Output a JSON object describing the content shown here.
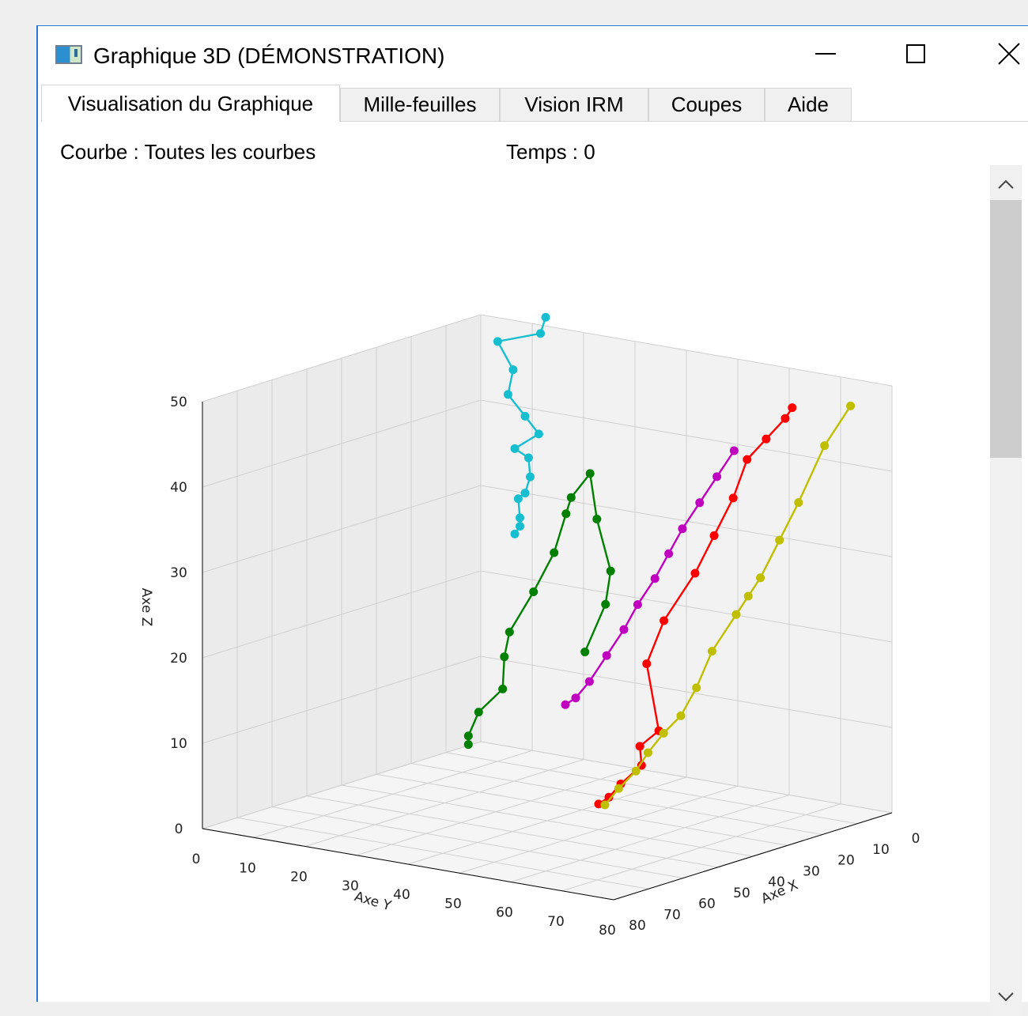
{
  "window": {
    "title": "Graphique 3D (DÉMONSTRATION)",
    "icon": "application-window-icon"
  },
  "tabs": [
    {
      "label": "Visualisation du Graphique",
      "active": true
    },
    {
      "label": "Mille-feuilles",
      "active": false
    },
    {
      "label": "Vision IRM",
      "active": false
    },
    {
      "label": "Coupes",
      "active": false
    },
    {
      "label": "Aide",
      "active": false
    }
  ],
  "info": {
    "curve": "Courbe : Toutes les courbes",
    "time": "Temps : 0"
  },
  "scrollbars": [
    {
      "name": "vertical-scrollbar-inner",
      "position": 0.0
    },
    {
      "name": "vertical-scrollbar-outer",
      "position": 0.0
    }
  ],
  "chart_data": {
    "type": "scatter3d",
    "xlabel": "Axe X",
    "ylabel": "Axe Y",
    "zlabel": "Axe Z",
    "xlim": [
      0,
      80
    ],
    "ylim": [
      0,
      80
    ],
    "zlim": [
      0,
      50
    ],
    "x_ticks": [
      0,
      10,
      20,
      30,
      40,
      50,
      60,
      70,
      80
    ],
    "y_ticks": [
      0,
      10,
      20,
      30,
      40,
      50,
      60,
      70,
      80
    ],
    "z_ticks": [
      0,
      10,
      20,
      30,
      40,
      50
    ],
    "grid": true,
    "series_colors": [
      "#17becf",
      "#008000",
      "#ff0000",
      "#bfbf00",
      "#bf00bf"
    ],
    "series": [
      {
        "color": "#17becf",
        "points": [
          [
            5,
            10,
            26
          ],
          [
            5,
            11,
            27
          ],
          [
            5,
            11,
            28
          ],
          [
            4,
            10,
            30
          ],
          [
            5,
            12,
            31
          ],
          [
            5,
            13,
            33
          ],
          [
            4,
            12,
            35
          ],
          [
            5,
            10,
            36
          ],
          [
            4,
            14,
            38
          ],
          [
            5,
            12,
            40
          ],
          [
            4,
            8,
            42
          ],
          [
            4,
            9,
            45
          ],
          [
            4,
            6,
            48
          ],
          [
            5,
            15,
            50
          ],
          [
            5,
            16,
            52
          ]
        ]
      },
      {
        "color": "#008000",
        "points": [
          [
            8,
            3,
            1
          ],
          [
            8,
            3,
            2
          ],
          [
            8,
            5,
            5
          ],
          [
            7,
            9,
            8
          ],
          [
            8,
            10,
            12
          ],
          [
            8,
            11,
            15
          ],
          [
            7,
            15,
            20
          ],
          [
            7,
            19,
            25
          ],
          [
            8,
            22,
            30
          ],
          [
            8,
            23,
            32
          ],
          [
            7,
            26,
            35
          ],
          [
            8,
            28,
            30
          ],
          [
            7,
            30,
            24
          ],
          [
            7,
            29,
            20
          ],
          [
            7,
            25,
            14
          ]
        ]
      },
      {
        "color": "#ff0000",
        "points": [
          [
            40,
            50,
            3
          ],
          [
            40,
            52,
            4
          ],
          [
            41,
            55,
            6
          ],
          [
            38,
            57,
            8
          ],
          [
            37,
            56,
            10
          ],
          [
            36,
            59,
            12
          ],
          [
            38,
            58,
            20
          ],
          [
            36,
            60,
            25
          ],
          [
            30,
            62,
            30
          ],
          [
            26,
            63,
            34
          ],
          [
            22,
            64,
            38
          ],
          [
            18,
            64,
            42
          ],
          [
            14,
            65,
            44
          ],
          [
            10,
            66,
            46
          ],
          [
            8,
            66,
            47
          ]
        ]
      },
      {
        "color": "#bfbf00",
        "points": [
          [
            50,
            58,
            5
          ],
          [
            49,
            60,
            7
          ],
          [
            47,
            62,
            9
          ],
          [
            45,
            63,
            11
          ],
          [
            42,
            64,
            13
          ],
          [
            40,
            66,
            15
          ],
          [
            37,
            67,
            18
          ],
          [
            34,
            68,
            22
          ],
          [
            30,
            70,
            26
          ],
          [
            28,
            71,
            28
          ],
          [
            26,
            72,
            30
          ],
          [
            22,
            73,
            34
          ],
          [
            18,
            74,
            38
          ],
          [
            12,
            75,
            44
          ],
          [
            6,
            76,
            48
          ]
        ]
      },
      {
        "color": "#bf00bf",
        "points": [
          [
            20,
            30,
            10
          ],
          [
            20,
            32,
            11
          ],
          [
            19,
            34,
            13
          ],
          [
            17,
            36,
            16
          ],
          [
            15,
            38,
            19
          ],
          [
            14,
            40,
            22
          ],
          [
            12,
            42,
            25
          ],
          [
            11,
            44,
            28
          ],
          [
            10,
            46,
            31
          ],
          [
            8,
            48,
            34
          ],
          [
            6,
            50,
            37
          ],
          [
            4,
            52,
            40
          ]
        ]
      }
    ]
  }
}
